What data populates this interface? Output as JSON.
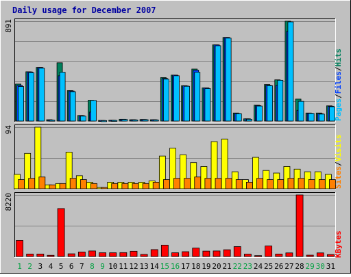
{
  "colors": {
    "background": "#C0C0C0",
    "plot_bg": "#C0C0C0",
    "grid": "#808080",
    "title": "#0000A0",
    "weekday_label": "#000000",
    "weekend_label": "#00A040",
    "hits": "#00805C",
    "files": "#0040FF",
    "pages": "#00C0FF",
    "visits": "#FFFF00",
    "sites": "#FF8000",
    "kbytes": "#FF0000"
  },
  "chart_data": {
    "title": "Daily usage for December 2007",
    "type": "bar",
    "categories": [
      "1",
      "2",
      "3",
      "4",
      "5",
      "6",
      "7",
      "8",
      "9",
      "10",
      "11",
      "12",
      "13",
      "14",
      "15",
      "16",
      "17",
      "18",
      "19",
      "20",
      "21",
      "22",
      "23",
      "24",
      "25",
      "26",
      "27",
      "28",
      "29",
      "30",
      "31"
    ],
    "weekend_days": [
      "1",
      "2",
      "8",
      "9",
      "15",
      "16",
      "22",
      "23",
      "29",
      "30"
    ],
    "panels": [
      {
        "name": "hits-files-pages",
        "max_label": "891",
        "ylim": [
          0,
          891
        ],
        "legend": [
          {
            "text": "Pages",
            "color": "#00C0FF"
          },
          {
            "text": "/",
            "color": "#000000"
          },
          {
            "text": "Files",
            "color": "#0040FF"
          },
          {
            "text": "/",
            "color": "#000000"
          },
          {
            "text": "Hits",
            "color": "#00805C"
          }
        ],
        "series": [
          {
            "name": "Hits",
            "values": [
              330,
              440,
              478,
              12,
              520,
              272,
              50,
              186,
              6,
              8,
              16,
              12,
              14,
              12,
              388,
              410,
              316,
              464,
              296,
              680,
              746,
              72,
              20,
              142,
              326,
              368,
              891,
              196,
              72,
              72,
              136
            ]
          },
          {
            "name": "Files",
            "values": [
              318,
              438,
              478,
              10,
              404,
              268,
              48,
              80,
              6,
              8,
              16,
              12,
              14,
              12,
              380,
              410,
              314,
              454,
              296,
              680,
              746,
              68,
              20,
              138,
              320,
              320,
              800,
              96,
              70,
              66,
              132
            ]
          },
          {
            "name": "Pages",
            "values": [
              308,
              432,
              472,
              8,
              436,
              262,
              44,
              184,
              4,
              6,
              14,
              10,
              12,
              10,
              374,
              404,
              310,
              436,
              290,
              672,
              740,
              66,
              16,
              134,
              316,
              364,
              885,
              176,
              68,
              62,
              128
            ]
          }
        ]
      },
      {
        "name": "visits-sites",
        "max_label": "94",
        "ylim": [
          0,
          94
        ],
        "legend": [
          {
            "text": "Sites",
            "color": "#FF8000"
          },
          {
            "text": "/",
            "color": "#000000"
          },
          {
            "text": "Visits",
            "color": "#FFFF00"
          }
        ],
        "series": [
          {
            "name": "Visits",
            "values": [
              22,
              54,
              94,
              6,
              8,
              56,
              20,
              10,
              2,
              10,
              10,
              10,
              10,
              12,
              50,
              62,
              52,
              40,
              34,
              72,
              76,
              26,
              14,
              48,
              28,
              24,
              34,
              30,
              26,
              26,
              22
            ]
          },
          {
            "name": "Sites",
            "values": [
              14,
              16,
              18,
              6,
              8,
              16,
              14,
              8,
              2,
              8,
              8,
              8,
              8,
              10,
              14,
              16,
              16,
              18,
              16,
              16,
              16,
              14,
              10,
              16,
              14,
              14,
              16,
              16,
              14,
              14,
              14
            ]
          }
        ]
      },
      {
        "name": "kbytes",
        "max_label": "8220",
        "ylim": [
          0,
          8220
        ],
        "legend": [
          {
            "text": "KBytes",
            "color": "#FF0000"
          }
        ],
        "series": [
          {
            "name": "KBytes",
            "values": [
              2150,
              330,
              330,
              160,
              6400,
              360,
              600,
              740,
              500,
              500,
              520,
              700,
              280,
              920,
              1520,
              500,
              640,
              1120,
              720,
              740,
              900,
              1320,
              320,
              120,
              1400,
              330,
              480,
              8220,
              180,
              480,
              260
            ]
          }
        ]
      }
    ]
  }
}
